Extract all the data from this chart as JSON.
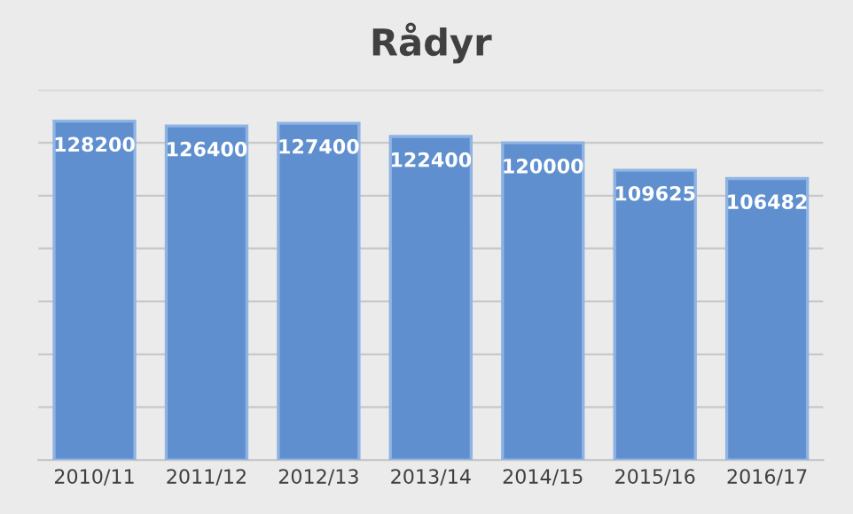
{
  "chart_data": {
    "type": "bar",
    "title": "Rådyr",
    "categories": [
      "2010/11",
      "2011/12",
      "2012/13",
      "2013/14",
      "2014/15",
      "2015/16",
      "2016/17"
    ],
    "values": [
      128200,
      126400,
      127400,
      122400,
      120000,
      109625,
      106482
    ],
    "color": "#5f8fcf",
    "ylim": [
      0,
      140000
    ],
    "yticks": [
      {
        "value": 0,
        "label": null
      },
      {
        "value": 20000,
        "label": null
      },
      {
        "value": 40000,
        "label": null
      },
      {
        "value": 60000,
        "label": null
      },
      {
        "value": 80000,
        "label": null
      },
      {
        "value": 100000,
        "label": null
      },
      {
        "value": 120000,
        "label": null
      },
      {
        "value": 140000,
        "label": null
      }
    ],
    "grid": "y",
    "data_labels": true,
    "tick_labels": "x"
  }
}
